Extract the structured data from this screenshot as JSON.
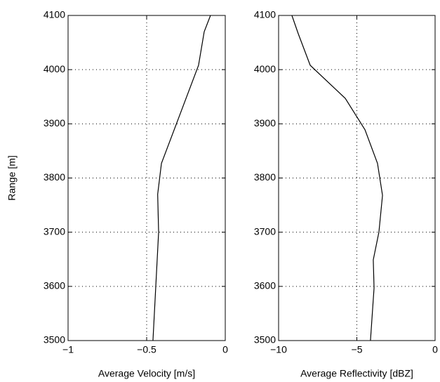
{
  "chart_data": [
    {
      "type": "line",
      "xlabel": "Average Velocity [m/s]",
      "ylabel": "Range [m]",
      "y": [
        4100,
        4070,
        4008,
        3827,
        3770,
        3700,
        3500
      ],
      "series": [
        {
          "values": [
            -0.094,
            -0.134,
            -0.17,
            -0.406,
            -0.43,
            -0.424,
            -0.46
          ],
          "color": "#000000"
        }
      ],
      "xlim": [
        -1,
        0
      ],
      "xticks": [
        {
          "value": -1,
          "label": "−1"
        },
        {
          "value": -0.5,
          "label": "−0.5"
        },
        0
      ],
      "ylim": [
        3500,
        4100
      ],
      "yticks": [
        3500,
        3600,
        3700,
        3800,
        3900,
        4000,
        4100
      ],
      "grid": true
    },
    {
      "type": "line",
      "xlabel": "Average Reflectivity [dBZ]",
      "y": [
        4100,
        4066,
        4008,
        3947,
        3889,
        3827,
        3768,
        3700,
        3649,
        3597,
        3500
      ],
      "series": [
        {
          "values": [
            -9.15,
            -8.74,
            -7.98,
            -5.74,
            -4.48,
            -3.68,
            -3.36,
            -3.59,
            -3.95,
            -3.9,
            -4.13
          ],
          "color": "#000000"
        }
      ],
      "xlim": [
        -10,
        0
      ],
      "xticks": [
        {
          "value": -10,
          "label": "−10"
        },
        {
          "value": -5,
          "label": "−5"
        },
        0
      ],
      "ylim": [
        3500,
        4100
      ],
      "yticks": [
        3500,
        3600,
        3700,
        3800,
        3900,
        4000,
        4100
      ],
      "grid": true
    }
  ]
}
